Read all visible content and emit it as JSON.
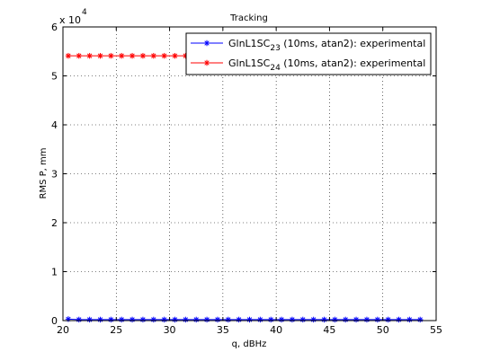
{
  "chart_data": {
    "type": "line",
    "title": "Tracking",
    "xlabel": "q, dBHz",
    "ylabel": "RMS P, mm",
    "xlim": [
      20,
      55
    ],
    "ylim": [
      0,
      6
    ],
    "y_exponent_label": "x 10",
    "y_exponent_power": "4",
    "x_ticks": [
      20,
      25,
      30,
      35,
      40,
      45,
      50,
      55
    ],
    "y_ticks": [
      0,
      1,
      2,
      3,
      4,
      5,
      6
    ],
    "x_tick_labels": [
      "20",
      "25",
      "30",
      "35",
      "40",
      "45",
      "50",
      "55"
    ],
    "y_tick_labels": [
      "0",
      "1",
      "2",
      "3",
      "4",
      "5",
      "6"
    ],
    "grid": true,
    "legend_position": "top-right",
    "series": [
      {
        "name_main": "GlnL1SC",
        "name_sub": "23",
        "name_rest": " (10ms, atan2): experimental",
        "color": "#0000ff",
        "marker": "asterisk",
        "x": [
          20.5,
          21.5,
          22.5,
          23.5,
          24.5,
          25.5,
          26.5,
          27.5,
          28.5,
          29.5,
          30.5,
          31.5,
          32.5,
          33.5,
          34.5,
          35.5,
          36.5,
          37.5,
          38.5,
          39.5,
          40.5,
          41.5,
          42.5,
          43.5,
          44.5,
          45.5,
          46.5,
          47.5,
          48.5,
          49.5,
          50.5,
          51.5,
          52.5,
          53.5
        ],
        "y": [
          0.03,
          0.02,
          0.02,
          0.02,
          0.02,
          0.02,
          0.02,
          0.02,
          0.02,
          0.02,
          0.02,
          0.02,
          0.02,
          0.02,
          0.02,
          0.02,
          0.02,
          0.02,
          0.02,
          0.02,
          0.02,
          0.02,
          0.02,
          0.02,
          0.02,
          0.02,
          0.02,
          0.02,
          0.02,
          0.02,
          0.02,
          0.02,
          0.02,
          0.02
        ]
      },
      {
        "name_main": "GlnL1SC",
        "name_sub": "24",
        "name_rest": " (10ms, atan2): experimental",
        "color": "#ff0000",
        "marker": "asterisk",
        "x": [
          20.5,
          21.5,
          22.5,
          23.5,
          24.5,
          25.5,
          26.5,
          27.5,
          28.5,
          29.5,
          30.5,
          31.5,
          32.5,
          33.5,
          34.5,
          35.5,
          36.5,
          37.5,
          38.5,
          39.5,
          40.5,
          41.5,
          42.5,
          43.5,
          44.5,
          45.5,
          46.5,
          47.5,
          48.5,
          49.5,
          50.5,
          51.5,
          52.5,
          53.5
        ],
        "y": [
          5.41,
          5.41,
          5.41,
          5.41,
          5.41,
          5.41,
          5.41,
          5.41,
          5.41,
          5.41,
          5.41,
          5.41,
          5.41,
          5.41,
          5.41,
          5.41,
          5.41,
          5.41,
          5.41,
          5.41,
          5.41,
          5.41,
          5.41,
          5.41,
          5.41,
          5.41,
          5.41,
          5.41,
          5.41,
          5.41,
          5.41,
          5.41,
          5.41,
          5.41
        ]
      }
    ]
  }
}
